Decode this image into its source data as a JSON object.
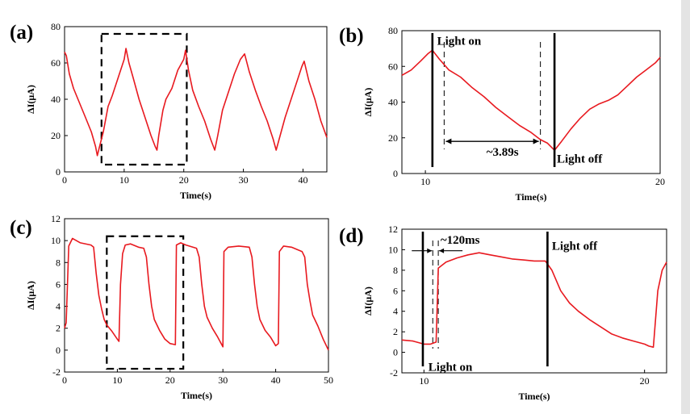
{
  "colors": {
    "series": "#e8191f",
    "axis": "#000000"
  },
  "chart_data": [
    {
      "panel": "(a)",
      "type": "line",
      "xlabel": "Time(s)",
      "ylabel": "ΔI(μA)",
      "xlim": [
        0,
        44
      ],
      "ylim": [
        0,
        80
      ],
      "xticks": [
        0,
        10,
        20,
        30,
        40
      ],
      "yticks": [
        0,
        20,
        40,
        60,
        80
      ],
      "highlight_box": {
        "x": [
          6.2,
          20.5
        ],
        "y": [
          4,
          76
        ]
      },
      "annotations": [],
      "series": [
        {
          "points": [
            [
              0,
              66
            ],
            [
              0.3,
              64
            ],
            [
              0.8,
              54
            ],
            [
              1.5,
              46
            ],
            [
              2.5,
              38
            ],
            [
              3.5,
              30
            ],
            [
              4.5,
              22
            ],
            [
              5.2,
              14
            ],
            [
              5.5,
              9
            ],
            [
              5.8,
              13
            ],
            [
              6.5,
              22
            ],
            [
              7.3,
              36
            ],
            [
              8,
              42
            ],
            [
              9,
              52
            ],
            [
              10,
              62
            ],
            [
              10.3,
              68
            ],
            [
              10.8,
              60
            ],
            [
              11.5,
              52
            ],
            [
              12.5,
              40
            ],
            [
              13.5,
              30
            ],
            [
              14.5,
              20
            ],
            [
              15.2,
              14
            ],
            [
              15.5,
              12
            ],
            [
              15.8,
              20
            ],
            [
              16.5,
              34
            ],
            [
              17,
              40
            ],
            [
              18,
              46
            ],
            [
              19,
              56
            ],
            [
              20,
              62
            ],
            [
              20.3,
              67
            ],
            [
              20.8,
              56
            ],
            [
              21.5,
              45
            ],
            [
              22.5,
              36
            ],
            [
              23.5,
              28
            ],
            [
              24.5,
              18
            ],
            [
              25.2,
              12
            ],
            [
              25.7,
              20
            ],
            [
              26.5,
              34
            ],
            [
              27.5,
              44
            ],
            [
              28.5,
              54
            ],
            [
              29.5,
              62
            ],
            [
              30.2,
              65
            ],
            [
              31,
              55
            ],
            [
              32,
              45
            ],
            [
              33,
              36
            ],
            [
              34,
              28
            ],
            [
              35,
              18
            ],
            [
              35.5,
              12
            ],
            [
              36,
              18
            ],
            [
              37,
              30
            ],
            [
              38,
              40
            ],
            [
              39,
              50
            ],
            [
              39.8,
              58
            ],
            [
              40.2,
              61
            ],
            [
              41,
              50
            ],
            [
              42,
              40
            ],
            [
              43,
              28
            ],
            [
              44,
              19
            ]
          ]
        }
      ]
    },
    {
      "panel": "(b)",
      "type": "line",
      "xlabel": "Time(s)",
      "ylabel": "ΔI(μA)",
      "xlim": [
        9,
        20
      ],
      "ylim": [
        0,
        80
      ],
      "xticks": [
        10,
        20
      ],
      "yticks": [
        0,
        20,
        40,
        60,
        80
      ],
      "solid_lines_x": [
        10.3,
        15.5
      ],
      "dashed_lines_x": [
        10.8,
        14.9
      ],
      "annotations": [
        {
          "text": "Light on",
          "x": 10.5,
          "y": 72
        },
        {
          "text": "~3.89s",
          "x": 12.6,
          "y": 10
        },
        {
          "text": "Light off",
          "x": 15.6,
          "y": 6
        }
      ],
      "series": [
        {
          "points": [
            [
              9,
              55
            ],
            [
              9.4,
              58
            ],
            [
              9.8,
              63
            ],
            [
              10.1,
              67
            ],
            [
              10.3,
              69
            ],
            [
              10.6,
              64
            ],
            [
              11,
              58
            ],
            [
              11.5,
              54
            ],
            [
              12,
              48
            ],
            [
              12.5,
              43
            ],
            [
              13,
              37
            ],
            [
              13.5,
              32
            ],
            [
              14,
              27
            ],
            [
              14.5,
              23
            ],
            [
              14.9,
              19
            ],
            [
              15.2,
              17
            ],
            [
              15.5,
              13
            ],
            [
              15.8,
              18
            ],
            [
              16.2,
              25
            ],
            [
              16.6,
              31
            ],
            [
              17,
              36
            ],
            [
              17.4,
              39
            ],
            [
              17.8,
              41
            ],
            [
              18.2,
              44
            ],
            [
              18.6,
              49
            ],
            [
              19,
              54
            ],
            [
              19.4,
              58
            ],
            [
              19.8,
              62
            ],
            [
              20,
              65
            ]
          ]
        }
      ]
    },
    {
      "panel": "(c)",
      "type": "line",
      "xlabel": "Time(s)",
      "ylabel": "ΔI(μA)",
      "xlim": [
        0,
        50
      ],
      "ylim": [
        -2,
        12
      ],
      "xticks": [
        0,
        10,
        20,
        30,
        40,
        50
      ],
      "yticks": [
        -2,
        0,
        2,
        4,
        6,
        8,
        10,
        12
      ],
      "highlight_box": {
        "x": [
          8,
          22.5
        ],
        "y": [
          -1.7,
          10.4
        ]
      },
      "annotations": [],
      "series": [
        {
          "points": [
            [
              0,
              2
            ],
            [
              0.3,
              2.5
            ],
            [
              0.8,
              9.5
            ],
            [
              1.5,
              10.2
            ],
            [
              3,
              9.8
            ],
            [
              5,
              9.6
            ],
            [
              5.5,
              9.4
            ],
            [
              6,
              7
            ],
            [
              6.5,
              5
            ],
            [
              7,
              3.8
            ],
            [
              7.5,
              2.8
            ],
            [
              8,
              2.3
            ],
            [
              9,
              1.7
            ],
            [
              10,
              1
            ],
            [
              10.3,
              0.8
            ],
            [
              10.6,
              6
            ],
            [
              11,
              8.8
            ],
            [
              11.5,
              9.6
            ],
            [
              12.5,
              9.7
            ],
            [
              14,
              9.4
            ],
            [
              15,
              9.3
            ],
            [
              15.5,
              8.5
            ],
            [
              16,
              6
            ],
            [
              16.5,
              4
            ],
            [
              17,
              2.8
            ],
            [
              18,
              1.8
            ],
            [
              19,
              1
            ],
            [
              20,
              0.6
            ],
            [
              21,
              0.5
            ],
            [
              21.2,
              9.6
            ],
            [
              22,
              9.8
            ],
            [
              23,
              9.6
            ],
            [
              25,
              9.3
            ],
            [
              25.5,
              8.5
            ],
            [
              26,
              6
            ],
            [
              26.5,
              4
            ],
            [
              27,
              3
            ],
            [
              28,
              2
            ],
            [
              29,
              1.2
            ],
            [
              30,
              0.3
            ],
            [
              30.2,
              9
            ],
            [
              31,
              9.4
            ],
            [
              33,
              9.5
            ],
            [
              35,
              9.4
            ],
            [
              35.5,
              8.5
            ],
            [
              36,
              6
            ],
            [
              36.5,
              4
            ],
            [
              37,
              2.8
            ],
            [
              38,
              1.8
            ],
            [
              39,
              1.2
            ],
            [
              40,
              0.4
            ],
            [
              40.5,
              0.6
            ],
            [
              40.7,
              9
            ],
            [
              41.5,
              9.5
            ],
            [
              43,
              9.4
            ],
            [
              45,
              9
            ],
            [
              45.5,
              8.5
            ],
            [
              46,
              6
            ],
            [
              46.5,
              4.5
            ],
            [
              47,
              3.2
            ],
            [
              48,
              2.2
            ],
            [
              49,
              1
            ],
            [
              50,
              0
            ]
          ]
        }
      ]
    },
    {
      "panel": "(d)",
      "type": "line",
      "xlabel": "Time(s)",
      "ylabel": "ΔI(μA)",
      "xlim": [
        9,
        21
      ],
      "ylim": [
        -2,
        12
      ],
      "xticks": [
        10,
        20
      ],
      "yticks": [
        -2,
        0,
        2,
        4,
        6,
        8,
        10,
        12
      ],
      "solid_lines_x": [
        9.95,
        15.6
      ],
      "dashed_lines_x": [
        10.4,
        10.65
      ],
      "annotations": [
        {
          "text": "~120ms",
          "x": 10.75,
          "y": 10.6
        },
        {
          "text": "Light off",
          "x": 15.8,
          "y": 10
        },
        {
          "text": "Light on",
          "x": 10.2,
          "y": -1.8
        }
      ],
      "series": [
        {
          "points": [
            [
              9,
              1.2
            ],
            [
              9.5,
              1.1
            ],
            [
              10,
              0.8
            ],
            [
              10.3,
              0.8
            ],
            [
              10.55,
              1
            ],
            [
              10.65,
              8.2
            ],
            [
              11,
              8.8
            ],
            [
              11.5,
              9.2
            ],
            [
              12,
              9.5
            ],
            [
              12.5,
              9.7
            ],
            [
              13,
              9.5
            ],
            [
              13.5,
              9.3
            ],
            [
              14,
              9.1
            ],
            [
              14.5,
              9
            ],
            [
              15,
              8.9
            ],
            [
              15.5,
              8.9
            ],
            [
              15.8,
              8
            ],
            [
              16.2,
              6
            ],
            [
              16.6,
              4.8
            ],
            [
              17,
              4
            ],
            [
              17.5,
              3.2
            ],
            [
              18,
              2.5
            ],
            [
              18.5,
              1.8
            ],
            [
              19,
              1.4
            ],
            [
              19.5,
              1.1
            ],
            [
              20,
              0.8
            ],
            [
              20.2,
              0.6
            ],
            [
              20.4,
              0.5
            ],
            [
              20.6,
              6
            ],
            [
              20.8,
              8
            ],
            [
              21,
              8.8
            ]
          ]
        }
      ]
    }
  ]
}
